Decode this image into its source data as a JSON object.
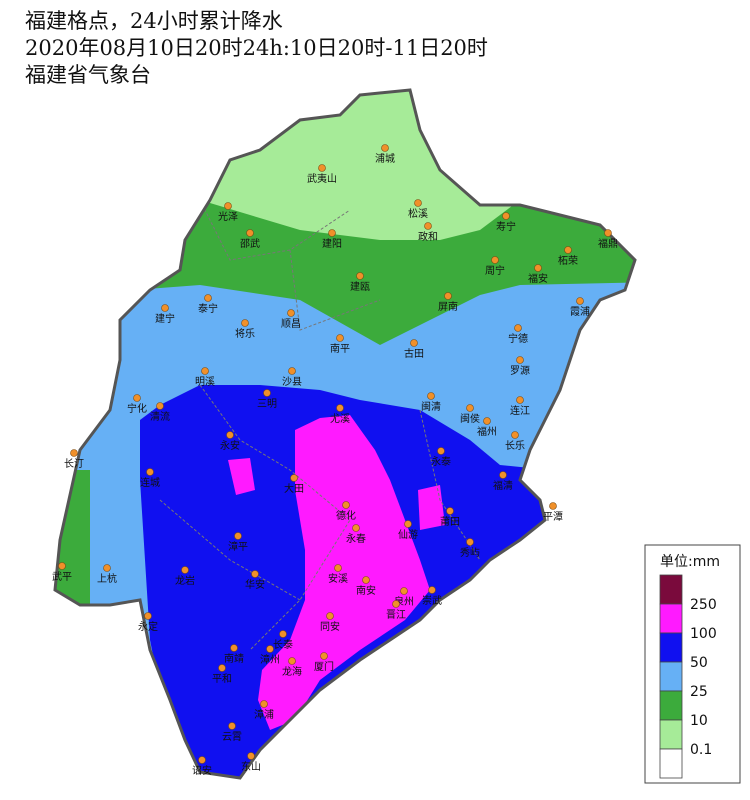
{
  "header": {
    "title": "福建格点，24小时累计降水",
    "time": "2020年08月10日20时24h:10日20时-11日20时",
    "source": "福建省气象台"
  },
  "legend": {
    "title": "单位:mm",
    "levels": [
      250,
      100,
      50,
      25,
      10,
      0.1
    ],
    "colors": [
      "#7a0a3c",
      "#ff1aff",
      "#1010f0",
      "#66b0f5",
      "#3cab3c",
      "#a6eb98",
      "#ffffff"
    ]
  },
  "cities": [
    "浦城",
    "武夷山",
    "光泽",
    "松溪",
    "政和",
    "寿宁",
    "福鼎",
    "邵武",
    "建阳",
    "周宁",
    "柘荣",
    "福安",
    "建瓯",
    "屏南",
    "霞浦",
    "建宁",
    "泰宁",
    "将乐",
    "顺昌",
    "宁德",
    "南平",
    "古田",
    "罗源",
    "明溪",
    "沙县",
    "宁化",
    "清流",
    "三明",
    "尤溪",
    "闽清",
    "闽侯",
    "连江",
    "福州",
    "长乐",
    "永安",
    "长汀",
    "永泰",
    "连城",
    "大田",
    "福清",
    "德化",
    "平潭",
    "莆田",
    "仙游",
    "永春",
    "漳平",
    "秀屿",
    "武平",
    "上杭",
    "龙岩",
    "华安",
    "安溪",
    "南安",
    "泉州",
    "崇武",
    "永定",
    "同安",
    "晋江",
    "长泰",
    "南靖",
    "漳州",
    "龙海",
    "厦门",
    "平和",
    "漳浦",
    "云霄",
    "诏安",
    "东山"
  ]
}
